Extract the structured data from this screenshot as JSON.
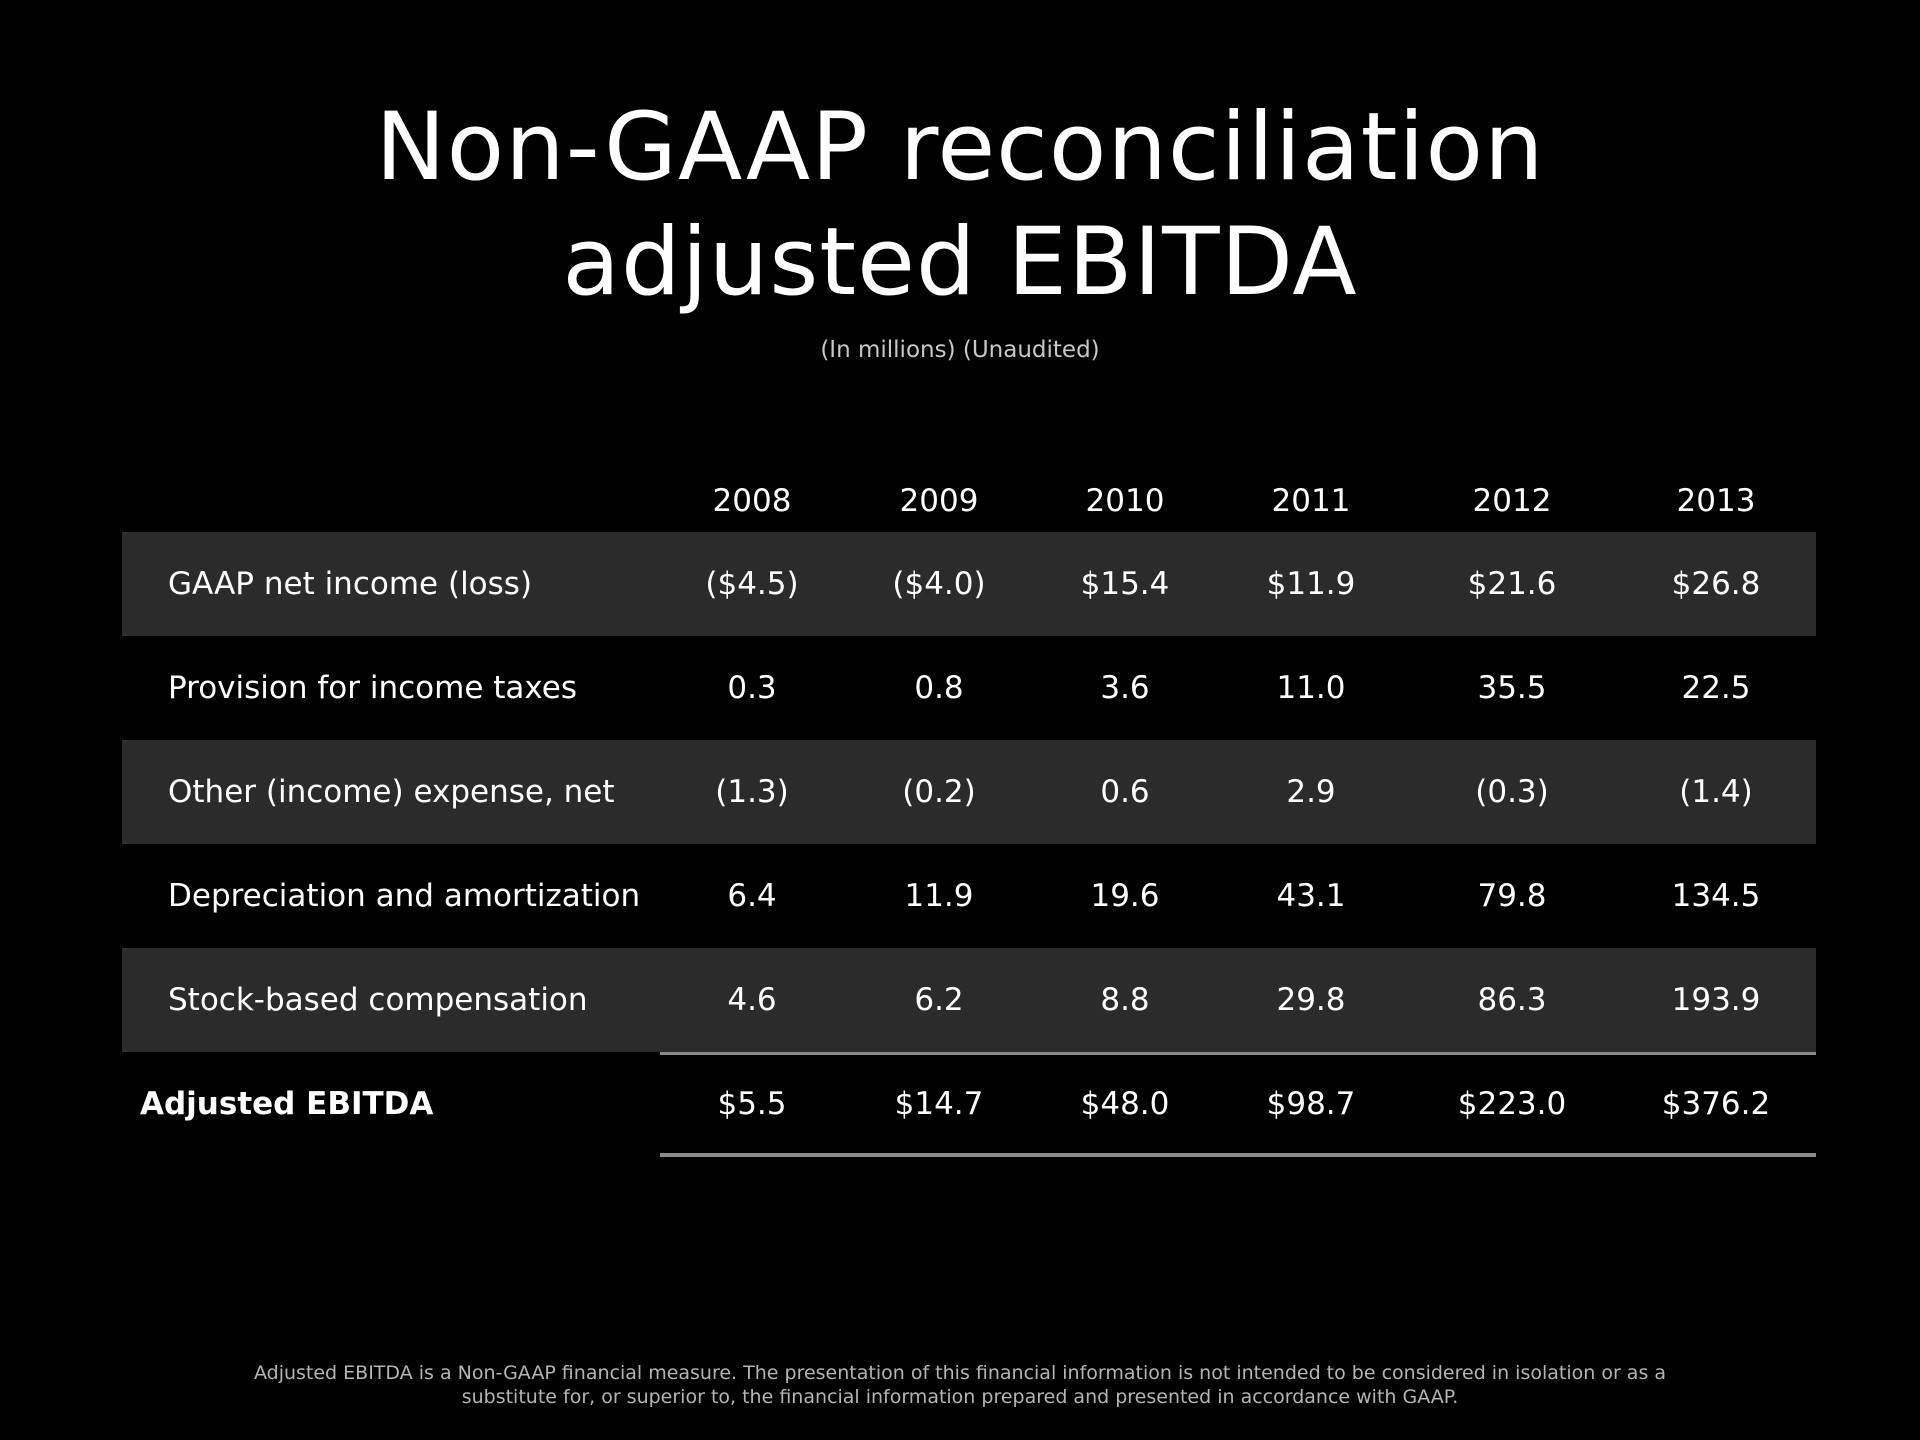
{
  "title": {
    "line1": "Non-GAAP reconciliation",
    "line2": "adjusted EBITDA"
  },
  "subtitle": "(In millions) (Unaudited)",
  "table": {
    "years": [
      "2008",
      "2009",
      "2010",
      "2011",
      "2012",
      "2013"
    ],
    "rows": [
      {
        "label": "GAAP net income (loss)",
        "values": [
          "($4.5)",
          "($4.0)",
          "$15.4",
          "$11.9",
          "$21.6",
          "$26.8"
        ]
      },
      {
        "label": "Provision for income taxes",
        "values": [
          "0.3",
          "0.8",
          "3.6",
          "11.0",
          "35.5",
          "22.5"
        ]
      },
      {
        "label": "Other (income) expense, net",
        "values": [
          "(1.3)",
          "(0.2)",
          "0.6",
          "2.9",
          "(0.3)",
          "(1.4)"
        ]
      },
      {
        "label": "Depreciation and amortization",
        "values": [
          "6.4",
          "11.9",
          "19.6",
          "43.1",
          "79.8",
          "134.5"
        ]
      },
      {
        "label": "Stock-based compensation",
        "values": [
          "4.6",
          "6.2",
          "8.8",
          "29.8",
          "86.3",
          "193.9"
        ]
      }
    ],
    "total": {
      "label": "Adjusted EBITDA",
      "values": [
        "$5.5",
        "$14.7",
        "$48.0",
        "$98.7",
        "$223.0",
        "$376.2"
      ]
    }
  },
  "footnote": {
    "line1": "Adjusted EBITDA is a Non-GAAP financial measure. The presentation of this financial information is not intended to be considered in isolation or as a",
    "line2": "substitute for, or superior to, the financial information prepared and presented in accordance with GAAP."
  },
  "colors": {
    "background": "#000000",
    "row_shade": "#2b2b2b",
    "text": "#ffffff",
    "rule": "#8a8a8a"
  }
}
